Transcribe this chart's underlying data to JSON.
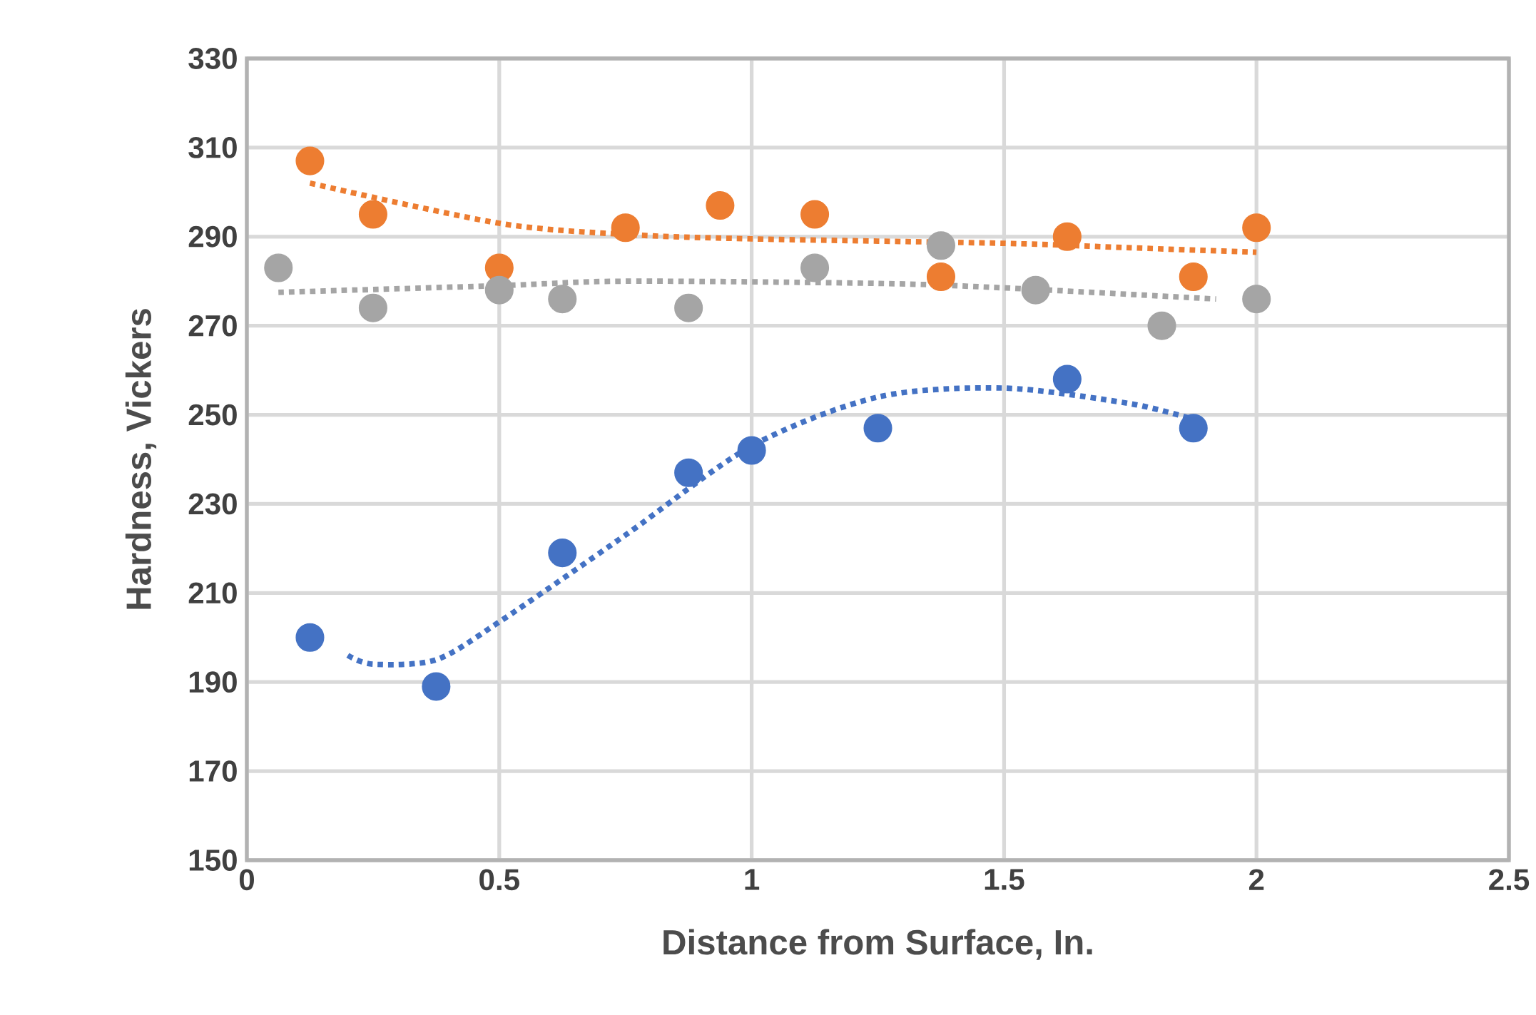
{
  "chart_data": {
    "type": "scatter",
    "xlabel": "Distance from Surface, In.",
    "ylabel": "Hardness, Vickers",
    "xlim": [
      0,
      2.5
    ],
    "ylim": [
      150,
      330
    ],
    "xticks": [
      0,
      0.5,
      1,
      1.5,
      2,
      2.5
    ],
    "yticks": [
      150,
      170,
      190,
      210,
      230,
      250,
      270,
      290,
      310,
      330
    ],
    "grid": true,
    "marker": "circle",
    "series": [
      {
        "color": "#ed7d31",
        "x": [
          0.125,
          0.25,
          0.5,
          0.75,
          0.9375,
          1.125,
          1.375,
          1.625,
          1.875,
          2
        ],
        "values": [
          307,
          295,
          283,
          292,
          297,
          295,
          281,
          290,
          281,
          292
        ]
      },
      {
        "color": "#a5a5a5",
        "x": [
          0.0625,
          0.25,
          0.5,
          0.625,
          0.875,
          1.125,
          1.375,
          1.5625,
          1.8125,
          2
        ],
        "values": [
          283,
          274,
          278,
          276,
          274,
          283,
          288,
          278,
          270,
          276
        ]
      },
      {
        "color": "#4472c4",
        "x": [
          0.125,
          0.375,
          0.625,
          0.875,
          1,
          1.25,
          1.625,
          1.875
        ],
        "values": [
          200,
          189,
          219,
          237,
          242,
          247,
          258,
          247
        ]
      },
      {
        "type": "line",
        "line_style": "dotted",
        "marker": "none",
        "color": "#ed7d31",
        "x": [
          0.125,
          0.5,
          0.75,
          1,
          1.5,
          1.75,
          2
        ],
        "values": [
          302,
          293,
          290.5,
          289.5,
          288.5,
          287.5,
          286.5
        ]
      },
      {
        "type": "line",
        "line_style": "dotted",
        "marker": "none",
        "color": "#a5a5a5",
        "x": [
          0.0625,
          0.5,
          0.75,
          1.25,
          1.5,
          1.92
        ],
        "values": [
          277.5,
          279,
          280,
          279.5,
          278.5,
          276
        ]
      },
      {
        "type": "line",
        "line_style": "dotted",
        "marker": "none",
        "color": "#4472c4",
        "x": [
          0.2,
          0.25,
          0.375,
          0.5,
          0.75,
          1,
          1.25,
          1.5,
          1.75,
          1.875
        ],
        "values": [
          196,
          194,
          195,
          203.5,
          223,
          243,
          254,
          256,
          252.5,
          249
        ]
      }
    ]
  }
}
